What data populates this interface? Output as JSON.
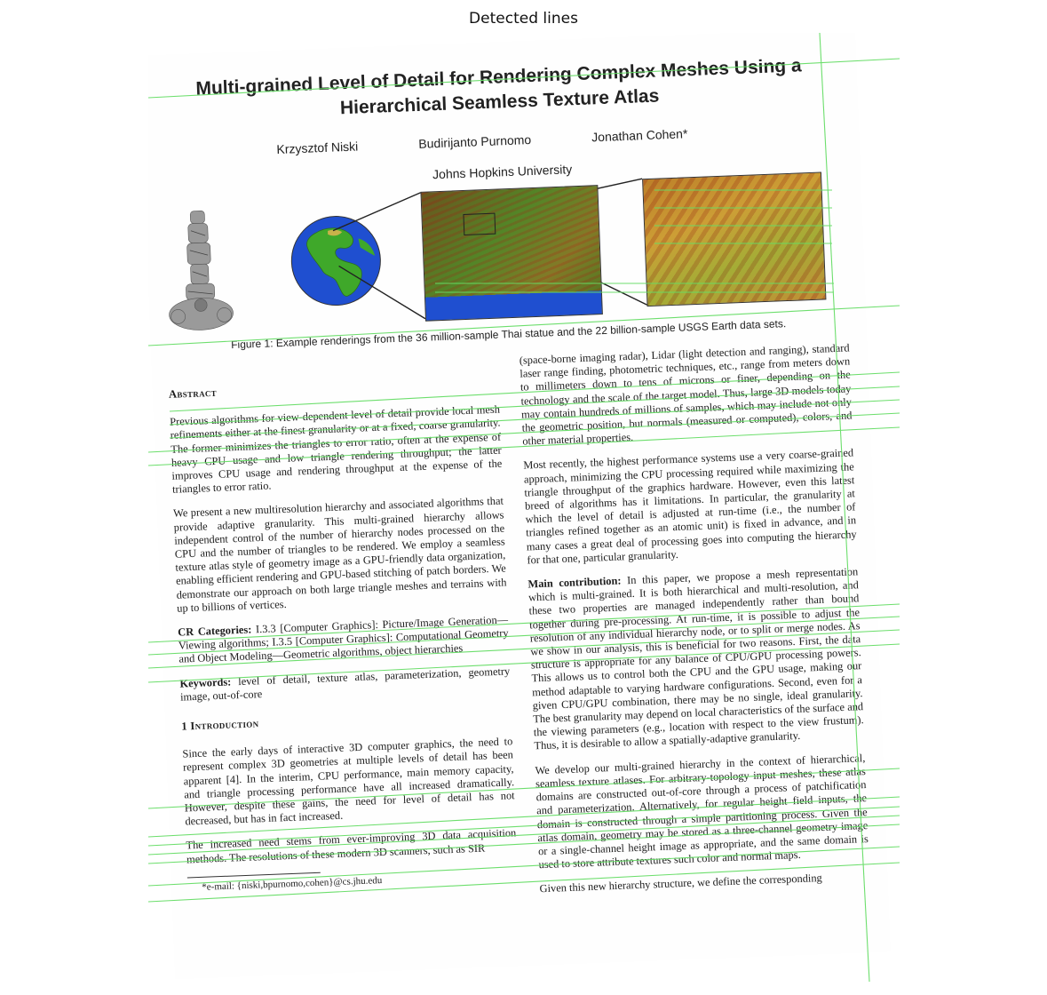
{
  "header": {
    "title": "Detected lines"
  },
  "paper": {
    "title_line1": "Multi-grained Level of Detail for Rendering Complex Meshes Using a",
    "title_line2": "Hierarchical Seamless Texture Atlas",
    "authors": [
      "Krzysztof Niski",
      "Budirijanto Purnomo",
      "Jonathan Cohen*"
    ],
    "affiliation": "Johns Hopkins University",
    "figure_caption": "Figure 1: Example renderings from the 36 million-sample Thai statue and the 22 billion-sample USGS Earth data sets.",
    "abstract_heading": "Abstract",
    "abstract_p1": "Previous algorithms for view-dependent level of detail provide local mesh refinements either at the finest granularity or at a fixed, coarse granularity. The former minimizes the triangles to error ratio, often at the expense of heavy CPU usage and low triangle rendering throughput; the latter improves CPU usage and rendering throughput at the expense of the triangles to error ratio.",
    "abstract_p2": "We present a new multiresolution hierarchy and associated algorithms that provide adaptive granularity. This multi-grained hierarchy allows independent control of the number of hierarchy nodes processed on the CPU and the number of triangles to be rendered. We employ a seamless texture atlas style of geometry image as a GPU-friendly data organization, enabling efficient rendering and GPU-based stitching of patch borders. We demonstrate our approach on both large triangle meshes and terrains with up to billions of vertices.",
    "cr_label": "CR Categories:",
    "cr_text": "I.3.3 [Computer Graphics]: Picture/Image Generation—Viewing algorithms; I.3.5 [Computer Graphics]: Computational Geometry and Object Modeling—Geometric algorithms, object hierarchies",
    "keywords_label": "Keywords:",
    "keywords_text": "level of detail, texture atlas, parameterization, geometry image, out-of-core",
    "intro_heading": "1 Introduction",
    "intro_p1": "Since the early days of interactive 3D computer graphics, the need to represent complex 3D geometries at multiple levels of detail has been apparent [4]. In the interim, CPU performance, main memory capacity, and triangle processing performance have all increased dramatically. However, despite these gains, the need for level of detail has not decreased, but has in fact increased.",
    "intro_p2": "The increased need stems from ever-improving 3D data acquisition methods. The resolutions of these modern 3D scanners, such as SIR",
    "footnote": "*e-mail: {niski,bpurnomo,cohen}@cs.jhu.edu",
    "right_p1": "(space-borne imaging radar), Lidar (light detection and ranging), standard laser range finding, photometric techniques, etc., range from meters down to millimeters down to tens of microns or finer, depending on the technology and the scale of the target model. Thus, large 3D models today may contain hundreds of millions of samples, which may include not only the geometric position, but normals (measured or computed), colors, and other material properties.",
    "right_p2": "Most recently, the highest performance systems use a very coarse-grained approach, minimizing the CPU processing required while maximizing the triangle throughput of the graphics hardware. However, even this latest breed of algorithms has it limitations. In particular, the granularity at which the level of detail is adjusted at run-time (i.e., the number of triangles refined together as an atomic unit) is fixed in advance, and in many cases a great deal of processing goes into computing the hierarchy for that one, particular granularity.",
    "main_contrib_label": "Main contribution:",
    "main_contrib_text": "In this paper, we propose a mesh representation which is multi-grained. It is both hierarchical and multi-resolution, and these two properties are managed independently rather than bound together during pre-processing. At run-time, it is possible to adjust the resolution of any individual hierarchy node, or to split or merge nodes. As we show in our analysis, this is beneficial for two reasons. First, the data structure is appropriate for any balance of CPU/GPU processing powers. This allows us to control both the CPU and the GPU usage, making our method adaptable to varying hardware configurations. Second, even for a given CPU/GPU combination, there may be no single, ideal granularity. The best granularity may depend on local characteristics of the surface and the viewing parameters (e.g., location with respect to the view frustum). Thus, it is desirable to allow a spatially-adaptive granularity.",
    "right_p4": "We develop our multi-grained hierarchy in the context of hierarchical, seamless texture atlases. For arbitrary-topology input meshes, these atlas domains are constructed out-of-core through a process of patchification and parameterization. Alternatively, for regular height field inputs, the domain is constructed through a simple partitioning process. Given the atlas domain, geometry may be stored as a three-channel geometry image or a single-channel height image as appropriate, and the same domain is used to store attribute textures such color and normal maps.",
    "right_p5": "Given this new hierarchy structure, we define the corresponding"
  },
  "colors": {
    "detected_line": "#66dd66",
    "ocean": "#1f4fd0",
    "land": "#3fa82a",
    "terrain_warm": "#c7843a"
  }
}
